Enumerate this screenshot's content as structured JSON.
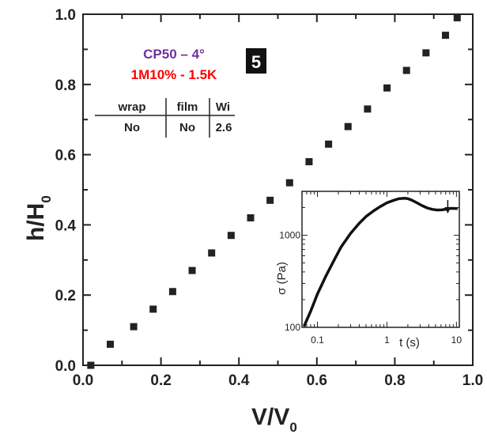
{
  "chart_data": {
    "main": {
      "type": "scatter",
      "xlabel_main": "V/V",
      "xlabel_sub": "0",
      "ylabel_main": "h/H",
      "ylabel_sub": "0",
      "xlim": [
        0,
        1
      ],
      "ylim": [
        0,
        1
      ],
      "xticks": [
        "0.0",
        "0.2",
        "0.4",
        "0.6",
        "0.8",
        "1.0"
      ],
      "yticks": [
        "0.0",
        "0.2",
        "0.4",
        "0.6",
        "0.8",
        "1.0"
      ],
      "series": [
        {
          "marker": "square",
          "color": "#222222",
          "x": [
            0.02,
            0.07,
            0.13,
            0.18,
            0.23,
            0.28,
            0.33,
            0.38,
            0.43,
            0.48,
            0.53,
            0.58,
            0.63,
            0.68,
            0.73,
            0.78,
            0.83,
            0.88,
            0.93,
            0.96
          ],
          "y": [
            0.0,
            0.06,
            0.11,
            0.16,
            0.21,
            0.27,
            0.32,
            0.37,
            0.42,
            0.47,
            0.52,
            0.58,
            0.63,
            0.68,
            0.73,
            0.79,
            0.84,
            0.89,
            0.94,
            0.99
          ]
        }
      ]
    },
    "legend": {
      "line1": "CP50 – 4°",
      "line2": "1M10% - 1.5K",
      "badge": "5",
      "table_headers": [
        "wrap",
        "film",
        "Wi"
      ],
      "table_values": [
        "No",
        "No",
        "2.6"
      ]
    },
    "inset": {
      "type": "line",
      "xlabel": "t (s)",
      "ylabel": "σ (Pa)",
      "xscale": "log",
      "yscale": "log",
      "xlim": [
        0.06,
        11
      ],
      "ylim": [
        100,
        3000
      ],
      "xticks": [
        "0.1",
        "1",
        "10"
      ],
      "yticks": [
        "100",
        "1000"
      ],
      "arrow_at_t": 7.5,
      "t": [
        0.065,
        0.08,
        0.1,
        0.13,
        0.17,
        0.22,
        0.3,
        0.4,
        0.5,
        0.65,
        0.8,
        1.0,
        1.25,
        1.5,
        1.8,
        2.0,
        2.3,
        2.7,
        3.2,
        3.8,
        4.5,
        5.3,
        6.2,
        7.0,
        7.5,
        8.5,
        10.0
      ],
      "sigma": [
        105,
        150,
        230,
        350,
        520,
        750,
        1050,
        1350,
        1600,
        1850,
        2050,
        2250,
        2400,
        2500,
        2520,
        2500,
        2400,
        2250,
        2100,
        1980,
        1910,
        1880,
        1890,
        1920,
        1950,
        1960,
        1950
      ]
    }
  }
}
